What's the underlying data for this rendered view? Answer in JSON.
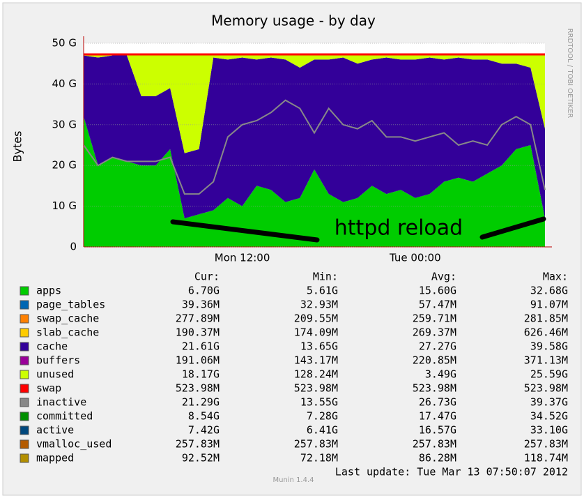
{
  "chart_data": {
    "type": "stacked-area",
    "title": "Memory usage - by day",
    "y_label": "Bytes",
    "side_text": "RRDTOOL / TOBI OETIKER",
    "annotation": "httpd reload",
    "footer": "Munin 1.4.4",
    "last_update": "Last update:  Tue Mar 13 07:50:07 2012",
    "stat_headers": [
      "Cur:",
      "Min:",
      "Avg:",
      "Max:"
    ],
    "ylim": [
      0,
      50
    ],
    "yticks": [
      0,
      {
        "value": 10,
        "label": "10 G"
      },
      {
        "value": 20,
        "label": "20 G"
      },
      {
        "value": 30,
        "label": "30 G"
      },
      {
        "value": 40,
        "label": "40 G"
      },
      {
        "value": 50,
        "label": "50 G"
      }
    ],
    "grid": true,
    "categories": [
      null,
      null,
      null,
      null,
      null,
      null,
      null,
      null,
      null,
      null,
      null,
      "Mon 12:00",
      null,
      null,
      null,
      null,
      null,
      null,
      null,
      null,
      null,
      null,
      null,
      "Tue 00:00",
      null,
      null,
      null,
      null,
      null,
      null,
      null,
      null,
      null
    ],
    "series": [
      {
        "name": "apps",
        "color": "#00cc00",
        "style": "area",
        "stats": [
          "6.70G",
          "5.61G",
          "15.60G",
          "32.68G"
        ],
        "values": [
          32,
          20,
          22,
          21,
          20,
          20,
          24,
          7,
          8,
          9,
          12,
          10,
          15,
          14,
          11,
          12,
          19,
          13,
          11,
          12,
          15,
          13,
          14,
          12,
          13,
          16,
          17,
          16,
          18,
          20,
          24,
          25,
          7
        ]
      },
      {
        "name": "page_tables",
        "color": "#0066b3",
        "stats": [
          "39.36M",
          "32.93M",
          "57.47M",
          "91.07M"
        ]
      },
      {
        "name": "swap_cache",
        "color": "#ff8000",
        "stats": [
          "277.89M",
          "209.55M",
          "259.71M",
          "281.85M"
        ]
      },
      {
        "name": "slab_cache",
        "color": "#ffcc00",
        "stats": [
          "190.37M",
          "174.09M",
          "269.37M",
          "626.46M"
        ]
      },
      {
        "name": "cache",
        "color": "#330099",
        "style": "area",
        "stats": [
          "21.61G",
          "13.65G",
          "27.27G",
          "39.58G"
        ],
        "values": [
          15,
          26.5,
          25,
          26,
          17,
          17,
          15,
          16,
          16,
          37.5,
          34,
          36.5,
          31,
          32.5,
          35,
          32,
          27,
          33,
          35.5,
          33,
          31,
          33.5,
          32,
          34,
          33.5,
          30,
          29.5,
          30,
          28,
          25,
          21,
          19,
          22
        ]
      },
      {
        "name": "buffers",
        "color": "#990099",
        "stats": [
          "191.06M",
          "143.17M",
          "220.85M",
          "371.13M"
        ]
      },
      {
        "name": "unused",
        "color": "#ccff00",
        "style": "area",
        "stats": [
          "18.17G",
          "128.24M",
          "3.49G",
          "25.59G"
        ],
        "values": [
          0,
          0.5,
          0,
          0,
          10,
          10,
          8,
          24,
          23,
          0.5,
          1,
          0.5,
          1,
          0.5,
          1,
          3,
          1,
          1,
          0.5,
          2,
          1,
          0.5,
          1,
          1,
          0.5,
          1,
          0.5,
          1,
          1,
          2,
          2,
          3,
          18
        ]
      },
      {
        "name": "swap",
        "color": "#ff0000",
        "style": "area",
        "stats": [
          "523.98M",
          "523.98M",
          "523.98M",
          "523.98M"
        ],
        "values": [
          0.52,
          0.52,
          0.52,
          0.52,
          0.52,
          0.52,
          0.52,
          0.52,
          0.52,
          0.52,
          0.52,
          0.52,
          0.52,
          0.52,
          0.52,
          0.52,
          0.52,
          0.52,
          0.52,
          0.52,
          0.52,
          0.52,
          0.52,
          0.52,
          0.52,
          0.52,
          0.52,
          0.52,
          0.52,
          0.52,
          0.52,
          0.52,
          0.52
        ]
      },
      {
        "name": "inactive",
        "color": "#888888",
        "style": "line",
        "stats": [
          "21.29G",
          "13.55G",
          "26.73G",
          "39.37G"
        ],
        "values": [
          25,
          20,
          22,
          21,
          21,
          21,
          22,
          13,
          13,
          16,
          27,
          30,
          31,
          33,
          36,
          34,
          28,
          34,
          30,
          29,
          31,
          27,
          27,
          26,
          27,
          28,
          25,
          26,
          25,
          30,
          32,
          30,
          14
        ]
      },
      {
        "name": "committed",
        "color": "#008f00",
        "stats": [
          "8.54G",
          "7.28G",
          "17.47G",
          "34.52G"
        ]
      },
      {
        "name": "active",
        "color": "#00487d",
        "stats": [
          "7.42G",
          "6.41G",
          "16.57G",
          "33.10G"
        ]
      },
      {
        "name": "vmalloc_used",
        "color": "#b35a00",
        "stats": [
          "257.83M",
          "257.83M",
          "257.83M",
          "257.83M"
        ]
      },
      {
        "name": "mapped",
        "color": "#b38f00",
        "stats": [
          "92.52M",
          "72.18M",
          "86.28M",
          "118.74M"
        ]
      }
    ]
  }
}
